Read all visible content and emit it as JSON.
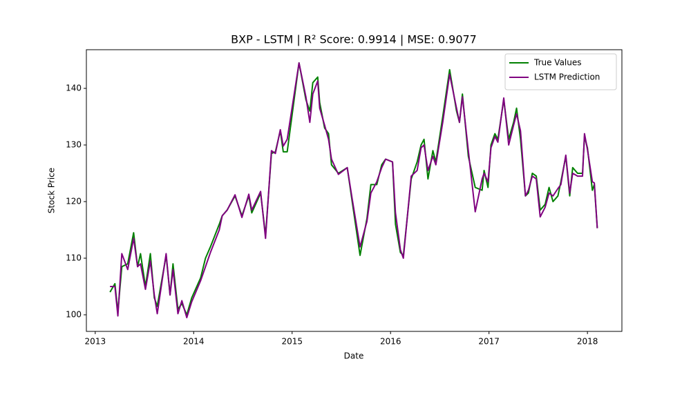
{
  "chart_data": {
    "type": "line",
    "title": "BXP - LSTM | R² Score: 0.9914 | MSE: 0.9077",
    "x_label": "Date",
    "y_label": "Stock Price",
    "x": [
      2013.15,
      2013.2,
      2013.23,
      2013.27,
      2013.33,
      2013.39,
      2013.43,
      2013.46,
      2013.51,
      2013.56,
      2013.6,
      2013.63,
      2013.72,
      2013.76,
      2013.79,
      2013.84,
      2013.88,
      2013.93,
      2013.98,
      2014.07,
      2014.12,
      2014.17,
      2014.26,
      2014.29,
      2014.34,
      2014.42,
      2014.49,
      2014.56,
      2014.59,
      2014.68,
      2014.73,
      2014.79,
      2014.83,
      2014.88,
      2014.91,
      2014.95,
      2015.07,
      2015.14,
      2015.18,
      2015.21,
      2015.26,
      2015.28,
      2015.33,
      2015.37,
      2015.4,
      2015.47,
      2015.56,
      2015.61,
      2015.69,
      2015.76,
      2015.8,
      2015.86,
      2015.91,
      2015.95,
      2016.02,
      2016.05,
      2016.1,
      2016.13,
      2016.21,
      2016.27,
      2016.31,
      2016.34,
      2016.38,
      2016.43,
      2016.46,
      2016.53,
      2016.6,
      2016.67,
      2016.7,
      2016.73,
      2016.79,
      2016.86,
      2016.93,
      2016.95,
      2016.99,
      2017.02,
      2017.06,
      2017.09,
      2017.15,
      2017.2,
      2017.25,
      2017.28,
      2017.32,
      2017.37,
      2017.4,
      2017.44,
      2017.48,
      2017.52,
      2017.57,
      2017.61,
      2017.65,
      2017.7,
      2017.73,
      2017.78,
      2017.82,
      2017.85,
      2017.9,
      2017.95,
      2017.97,
      2018.0,
      2018.05,
      2018.07,
      2018.1
    ],
    "series": [
      {
        "name": "True Values",
        "color": "#008000",
        "values": [
          104,
          105.5,
          100.5,
          108.5,
          109,
          114.5,
          108.5,
          110.8,
          105,
          110.8,
          103,
          101.5,
          110.5,
          103.5,
          109,
          101,
          102,
          100,
          103,
          106.5,
          110,
          112,
          116,
          117.5,
          118.5,
          121,
          117.5,
          121,
          118,
          121.5,
          114,
          128.5,
          128.8,
          132.5,
          128.8,
          128.8,
          144.5,
          138,
          136,
          141,
          142,
          137.5,
          133,
          132,
          126.5,
          125,
          126,
          120,
          110.5,
          117,
          123,
          123,
          126.5,
          127.5,
          127,
          116,
          111,
          110.5,
          124,
          127,
          130,
          131,
          124,
          129,
          127,
          135,
          143.3,
          136,
          134,
          139,
          128,
          122.5,
          122,
          125.5,
          122.5,
          130,
          132,
          131,
          138,
          131,
          134,
          136.5,
          131,
          121,
          121.5,
          125,
          124.5,
          118.5,
          119.5,
          122.5,
          120,
          121,
          123.5,
          128,
          121,
          126,
          125,
          125,
          131.5,
          129.5,
          122,
          123,
          115.3
        ]
      },
      {
        "name": "LSTM Prediction",
        "color": "#800080",
        "values": [
          105,
          105,
          99.8,
          110.8,
          108,
          113.5,
          108.5,
          109,
          104.5,
          109.5,
          103.5,
          100.2,
          110.8,
          103.5,
          108,
          100.2,
          102.5,
          99.5,
          102.3,
          106,
          108.5,
          111,
          115,
          117.5,
          118.5,
          121.2,
          117.2,
          121.3,
          118.5,
          121.8,
          113.5,
          129,
          128.5,
          132.7,
          129.8,
          131,
          144.5,
          138.5,
          134,
          139,
          141.3,
          136.5,
          133.5,
          131,
          127.5,
          124.8,
          126,
          120.5,
          112,
          116.5,
          121.5,
          123.5,
          126,
          127.5,
          127,
          118,
          111.5,
          110,
          124.5,
          125.5,
          129.5,
          130,
          125.5,
          128,
          126.5,
          134,
          142.5,
          136.5,
          134,
          138.5,
          129,
          118.2,
          124,
          125,
          123.5,
          129.5,
          131.5,
          130.5,
          138.3,
          130,
          133.5,
          135.5,
          132.5,
          121,
          122,
          124.5,
          124,
          117.3,
          119,
          121.5,
          121,
          122.3,
          123,
          128.2,
          121.5,
          125,
          124.5,
          124.5,
          132,
          129.2,
          123.5,
          123.3,
          115.3
        ]
      }
    ],
    "xlim": [
      2012.91,
      2018.35
    ],
    "ylim": [
      97.07,
      146.83
    ],
    "xticks": [
      2013,
      2014,
      2015,
      2016,
      2017,
      2018
    ],
    "yticks": [
      100,
      110,
      120,
      130,
      140
    ],
    "legend": "upper right"
  }
}
